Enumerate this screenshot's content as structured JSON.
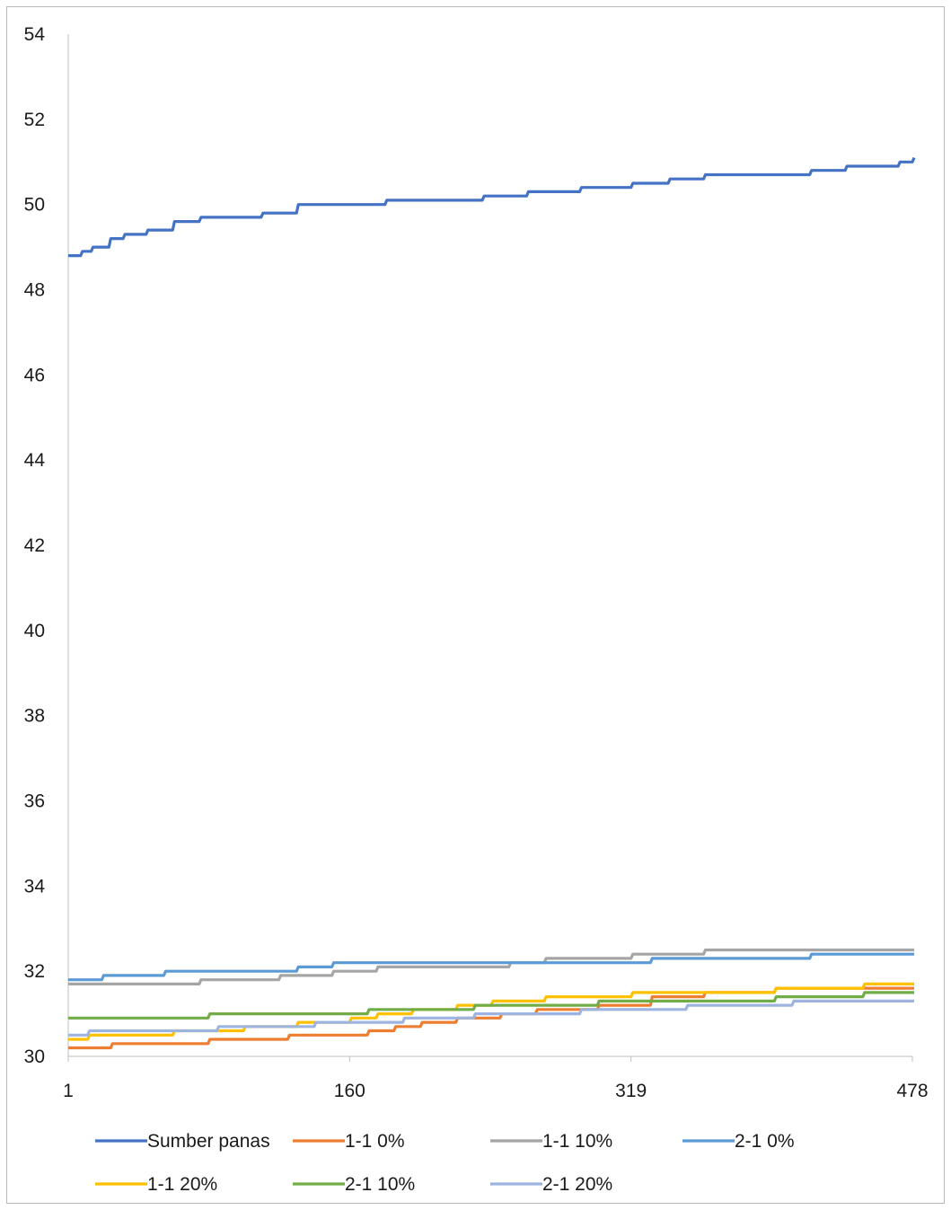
{
  "chart_data": {
    "type": "line",
    "title": "",
    "xlabel": "",
    "ylabel": "",
    "ylim": [
      30,
      54
    ],
    "yticks": [
      "54",
      "52",
      "50",
      "48",
      "46",
      "44",
      "42",
      "40",
      "38",
      "36",
      "34",
      "32",
      "30"
    ],
    "xlim": [
      1,
      478
    ],
    "xticks": [
      "1",
      "160",
      "319",
      "478"
    ],
    "grid": false,
    "legend_position": "bottom",
    "series": [
      {
        "name": "Sumber panas",
        "color": "#4472C4",
        "x": [
          1,
          8,
          14,
          24,
          32,
          45,
          60,
          75,
          90,
          110,
          130,
          150,
          180,
          205,
          235,
          260,
          290,
          319,
          340,
          350,
          360,
          380,
          400,
          420,
          440,
          460,
          470,
          478
        ],
        "y": [
          48.8,
          48.9,
          49.0,
          49.2,
          49.3,
          49.4,
          49.6,
          49.7,
          49.7,
          49.8,
          50.0,
          50.0,
          50.1,
          50.1,
          50.2,
          50.3,
          50.4,
          50.5,
          50.6,
          50.6,
          50.7,
          50.7,
          50.7,
          50.8,
          50.9,
          50.9,
          51.0,
          51.1
        ]
      },
      {
        "name": "1-1 0%",
        "color": "#ED7D31",
        "x": [
          1,
          12,
          25,
          40,
          60,
          80,
          100,
          125,
          150,
          170,
          185,
          200,
          220,
          245,
          265,
          300,
          330,
          360,
          400,
          430,
          460,
          478
        ],
        "y": [
          30.2,
          30.2,
          30.3,
          30.3,
          30.3,
          30.4,
          30.4,
          30.5,
          30.5,
          30.6,
          30.7,
          30.8,
          30.9,
          31.0,
          31.1,
          31.2,
          31.4,
          31.5,
          31.6,
          31.6,
          31.6,
          31.6
        ]
      },
      {
        "name": "1-1 10%",
        "color": "#A5A5A5",
        "x": [
          1,
          30,
          55,
          75,
          95,
          120,
          150,
          175,
          200,
          230,
          250,
          270,
          290,
          319,
          340,
          360,
          400,
          440,
          478
        ],
        "y": [
          31.7,
          31.7,
          31.7,
          31.8,
          31.8,
          31.9,
          32.0,
          32.1,
          32.1,
          32.1,
          32.2,
          32.3,
          32.3,
          32.4,
          32.4,
          32.5,
          32.5,
          32.5,
          32.5
        ]
      },
      {
        "name": "2-1 0%",
        "color": "#5B9BD5",
        "x": [
          1,
          20,
          55,
          80,
          110,
          130,
          150,
          180,
          200,
          230,
          260,
          300,
          330,
          360,
          400,
          420,
          478
        ],
        "y": [
          31.8,
          31.9,
          32.0,
          32.0,
          32.0,
          32.1,
          32.2,
          32.2,
          32.2,
          32.2,
          32.2,
          32.2,
          32.3,
          32.3,
          32.3,
          32.4,
          32.4
        ]
      },
      {
        "name": "1-1 20%",
        "color": "#FFC000",
        "x": [
          1,
          12,
          30,
          60,
          100,
          130,
          160,
          175,
          195,
          220,
          240,
          270,
          300,
          319,
          345,
          370,
          400,
          420,
          450,
          478
        ],
        "y": [
          30.4,
          30.5,
          30.5,
          30.6,
          30.7,
          30.8,
          30.9,
          31.0,
          31.1,
          31.2,
          31.3,
          31.4,
          31.4,
          31.5,
          31.5,
          31.5,
          31.6,
          31.6,
          31.7,
          31.7
        ]
      },
      {
        "name": "2-1 10%",
        "color": "#70AD47",
        "x": [
          1,
          40,
          80,
          120,
          140,
          170,
          200,
          230,
          260,
          300,
          340,
          370,
          400,
          430,
          450,
          478
        ],
        "y": [
          30.9,
          30.9,
          31.0,
          31.0,
          31.0,
          31.1,
          31.1,
          31.2,
          31.2,
          31.3,
          31.3,
          31.3,
          31.4,
          31.4,
          31.5,
          31.5
        ]
      },
      {
        "name": "2-1 20%",
        "color": "#9DB4E0",
        "x": [
          1,
          12,
          30,
          55,
          85,
          110,
          140,
          165,
          190,
          210,
          230,
          260,
          290,
          319,
          350,
          380,
          410,
          440,
          478
        ],
        "y": [
          30.5,
          30.6,
          30.6,
          30.6,
          30.7,
          30.7,
          30.8,
          30.8,
          30.9,
          30.9,
          31.0,
          31.0,
          31.1,
          31.1,
          31.2,
          31.2,
          31.3,
          31.3,
          31.3
        ]
      }
    ]
  }
}
